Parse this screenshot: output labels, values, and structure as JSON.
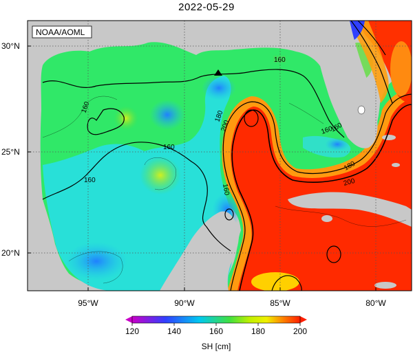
{
  "title": "2022-05-29",
  "credit": "NOAA/AOML",
  "lat_labels": [
    "30°N",
    "25°N",
    "20°N"
  ],
  "lon_labels": [
    "95°W",
    "90°W",
    "85°W",
    "80°W"
  ],
  "contour_labels": [
    "160",
    "160",
    "160",
    "160",
    "160",
    "160",
    "180",
    "200",
    "160",
    "180",
    "200"
  ],
  "colorbar": {
    "label": "SH [cm]",
    "ticks": [
      "120",
      "140",
      "160",
      "180",
      "200"
    ],
    "colors": [
      "#c800c8",
      "#3040ff",
      "#00c8f0",
      "#40e040",
      "#f0f000",
      "#ff8000",
      "#ff1e00"
    ]
  },
  "marker": "triangle-icon",
  "colors": {
    "land": "#c8c8c8",
    "grid": "#555555",
    "red_region": "#ff2200",
    "green_region": "#40e050",
    "cyan_region": "#30e0e0"
  }
}
